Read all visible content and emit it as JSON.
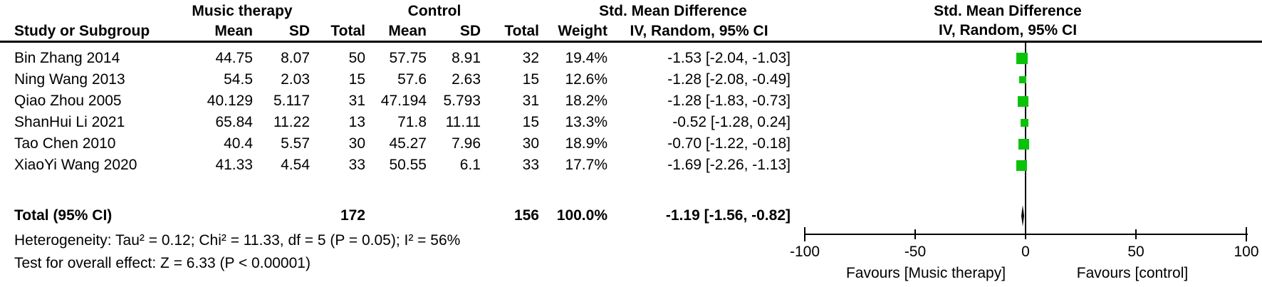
{
  "chart_data": {
    "type": "forest",
    "group_experimental": "Music therapy",
    "group_control": "Control",
    "effect_header": "Std. Mean Difference",
    "method_header": "IV, Random, 95% CI",
    "col_study": "Study or Subgroup",
    "col_mean": "Mean",
    "col_sd": "SD",
    "col_total": "Total",
    "col_weight": "Weight",
    "marker_color": "#0bc20b",
    "studies": [
      {
        "name": "Bin Zhang 2014",
        "mt_mean": "44.75",
        "mt_sd": "8.07",
        "mt_total": "50",
        "c_mean": "57.75",
        "c_sd": "8.91",
        "c_total": "32",
        "weight": "19.4%",
        "weight_pct": 19.4,
        "ci": "-1.53 [-2.04, -1.03]",
        "effect": -1.53,
        "low": -2.04,
        "high": -1.03
      },
      {
        "name": "Ning Wang 2013",
        "mt_mean": "54.5",
        "mt_sd": "2.03",
        "mt_total": "15",
        "c_mean": "57.6",
        "c_sd": "2.63",
        "c_total": "15",
        "weight": "12.6%",
        "weight_pct": 12.6,
        "ci": "-1.28 [-2.08, -0.49]",
        "effect": -1.28,
        "low": -2.08,
        "high": -0.49
      },
      {
        "name": "Qiao Zhou 2005",
        "mt_mean": "40.129",
        "mt_sd": "5.117",
        "mt_total": "31",
        "c_mean": "47.194",
        "c_sd": "5.793",
        "c_total": "31",
        "weight": "18.2%",
        "weight_pct": 18.2,
        "ci": "-1.28 [-1.83, -0.73]",
        "effect": -1.28,
        "low": -1.83,
        "high": -0.73
      },
      {
        "name": "ShanHui Li 2021",
        "mt_mean": "65.84",
        "mt_sd": "11.22",
        "mt_total": "13",
        "c_mean": "71.8",
        "c_sd": "11.11",
        "c_total": "15",
        "weight": "13.3%",
        "weight_pct": 13.3,
        "ci": "-0.52 [-1.28, 0.24]",
        "effect": -0.52,
        "low": -1.28,
        "high": 0.24
      },
      {
        "name": "Tao Chen 2010",
        "mt_mean": "40.4",
        "mt_sd": "5.57",
        "mt_total": "30",
        "c_mean": "45.27",
        "c_sd": "7.96",
        "c_total": "30",
        "weight": "18.9%",
        "weight_pct": 18.9,
        "ci": "-0.70 [-1.22, -0.18]",
        "effect": -0.7,
        "low": -1.22,
        "high": -0.18
      },
      {
        "name": "XiaoYi Wang 2020",
        "mt_mean": "41.33",
        "mt_sd": "4.54",
        "mt_total": "33",
        "c_mean": "50.55",
        "c_sd": "6.1",
        "c_total": "33",
        "weight": "17.7%",
        "weight_pct": 17.7,
        "ci": "-1.69 [-2.26, -1.13]",
        "effect": -1.69,
        "low": -2.26,
        "high": -1.13
      }
    ],
    "total": {
      "label": "Total (95% CI)",
      "mt_total": "172",
      "c_total": "156",
      "weight": "100.0%",
      "ci": "-1.19 [-1.56, -0.82]",
      "effect": -1.19,
      "low": -1.56,
      "high": -0.82
    },
    "heterogeneity": "Heterogeneity: Tau² = 0.12; Chi² = 11.33, df = 5 (P = 0.05); I² = 56%",
    "overall_effect": "Test for overall effect: Z = 6.33 (P < 0.00001)",
    "axis": {
      "min": -100,
      "max": 100,
      "ticks": [
        -100,
        -50,
        0,
        50,
        100
      ],
      "tick_labels": [
        "-100",
        "-50",
        "0",
        "50",
        "100"
      ],
      "favours_left": "Favours [Music therapy]",
      "favours_right": "Favours [control]"
    }
  }
}
